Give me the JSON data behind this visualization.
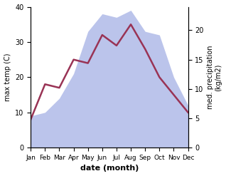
{
  "months": [
    "Jan",
    "Feb",
    "Mar",
    "Apr",
    "May",
    "Jun",
    "Jul",
    "Aug",
    "Sep",
    "Oct",
    "Nov",
    "Dec"
  ],
  "temperature": [
    8,
    18,
    17,
    25,
    24,
    32,
    29,
    35,
    28,
    20,
    15,
    10
  ],
  "precipitation": [
    9,
    10,
    14,
    21,
    33,
    38,
    37,
    39,
    33,
    32,
    20,
    12
  ],
  "temp_color": "#993355",
  "precip_color_fill": "#b0bae8",
  "title": "",
  "xlabel": "date (month)",
  "ylabel_left": "max temp (C)",
  "ylabel_right": "med. precipitation\n(kg/m2)",
  "ylim_left": [
    0,
    40
  ],
  "ylim_right": [
    0,
    24
  ],
  "yticks_left": [
    0,
    10,
    20,
    30,
    40
  ],
  "yticks_right": [
    0,
    5,
    10,
    15,
    20
  ],
  "bg_color": "#ffffff",
  "line_width": 1.8,
  "precip_scale": 0.6154
}
